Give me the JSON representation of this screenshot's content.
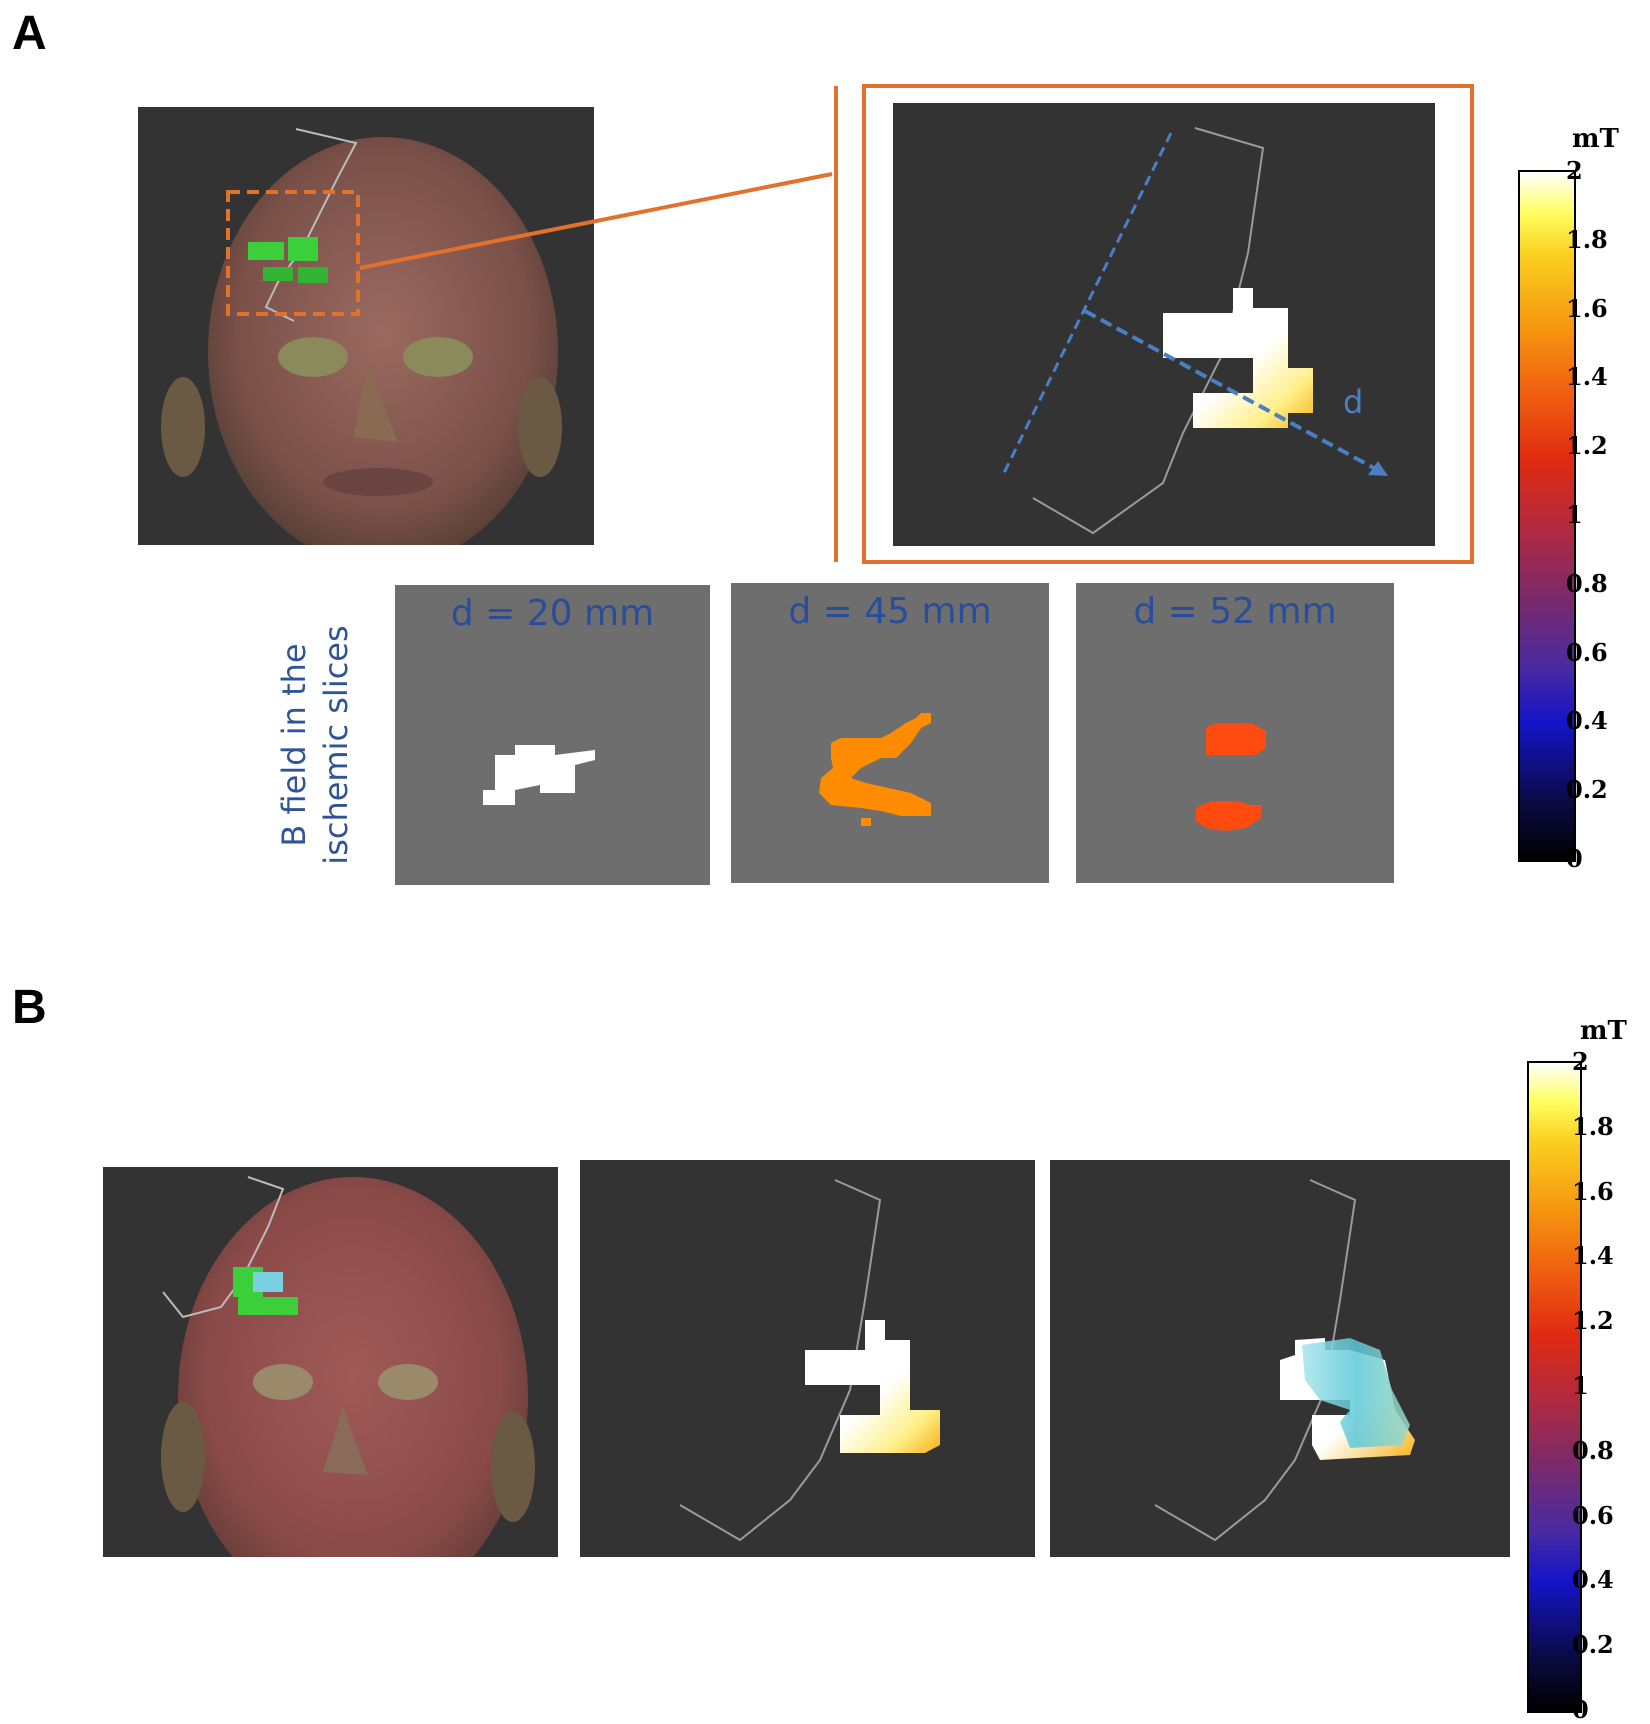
{
  "panel_a": {
    "label": "A",
    "slice_axis_label": "d",
    "slices_side_label_line1": "B field in the",
    "slices_side_label_line2": "ischemic slices",
    "slices": [
      {
        "title": "d = 20 mm",
        "color": "#ffffff"
      },
      {
        "title": "d = 45 mm",
        "color": "#ff8c00"
      },
      {
        "title": "d = 52 mm",
        "color": "#ff4a10"
      }
    ],
    "colorbar": {
      "unit": "mT",
      "ticks": [
        "2",
        "1.8",
        "1.6",
        "1.4",
        "1.2",
        "1",
        "0.8",
        "0.6",
        "0.4",
        "0.2",
        "0"
      ]
    }
  },
  "panel_b": {
    "label": "B",
    "colorbar": {
      "unit": "mT",
      "ticks": [
        "2",
        "1.8",
        "1.6",
        "1.4",
        "1.2",
        "1",
        "0.8",
        "0.6",
        "0.4",
        "0.2",
        "0"
      ]
    }
  },
  "colors": {
    "highlight_orange": "#e2712b",
    "axis_blue": "#4a7fc4",
    "lesion_green": "#3ccf3c",
    "background_dark": "#333333",
    "slice_gray": "#6e6e6e"
  }
}
